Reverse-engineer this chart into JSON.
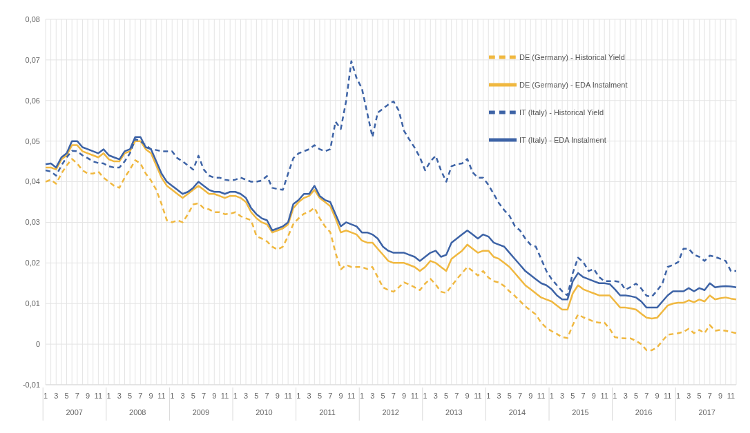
{
  "chart_data": {
    "type": "line",
    "categories": [
      "1",
      null,
      "3",
      null,
      "5",
      null,
      "7",
      null,
      "9",
      null,
      "11",
      null,
      "1",
      null,
      "3",
      null,
      "5",
      null,
      "7",
      null,
      "9",
      null,
      "11",
      null,
      "1",
      null,
      "3",
      null,
      "5",
      null,
      "7",
      null,
      "9",
      null,
      "11",
      null,
      "1",
      null,
      "3",
      null,
      "5",
      null,
      "7",
      null,
      "9",
      null,
      "11",
      null,
      "1",
      null,
      "3",
      null,
      "5",
      null,
      "7",
      null,
      "9",
      null,
      "11",
      null,
      "1",
      null,
      "3",
      null,
      "5",
      null,
      "7",
      null,
      "9",
      null,
      "11",
      null,
      "1",
      null,
      "3",
      null,
      "5",
      null,
      "7",
      null,
      "9",
      null,
      "11",
      null,
      "1",
      null,
      "3",
      null,
      "5",
      null,
      "7",
      null,
      "9",
      null,
      "11",
      null,
      "1",
      null,
      "3",
      null,
      "5",
      null,
      "7",
      null,
      "9",
      null,
      "11",
      null,
      "1",
      null,
      "3",
      null,
      "5",
      null,
      "7",
      null,
      "9",
      null,
      "11",
      null,
      "1",
      null,
      "3",
      null,
      "5",
      null,
      "7",
      null,
      "9",
      null,
      "11",
      null
    ],
    "annotations": [
      "2007",
      "2008",
      "2009",
      "2010",
      "2011",
      "2012",
      "2013",
      "2014",
      "2015",
      "2016",
      "2017"
    ],
    "series": [
      {
        "name": "DE (Germany) - Historical Yield",
        "color": "#f0b840",
        "line_style": "dashed",
        "values": [
          0.04,
          0.0405,
          0.0395,
          0.042,
          0.044,
          0.0456,
          0.0445,
          0.0428,
          0.042,
          0.042,
          0.0425,
          0.041,
          0.04,
          0.039,
          0.0385,
          0.041,
          0.043,
          0.0453,
          0.0445,
          0.042,
          0.0403,
          0.038,
          0.0345,
          0.0305,
          0.03,
          0.0305,
          0.03,
          0.032,
          0.0344,
          0.0347,
          0.0335,
          0.0332,
          0.0325,
          0.0325,
          0.032,
          0.0321,
          0.0325,
          0.0315,
          0.031,
          0.0305,
          0.0266,
          0.026,
          0.0253,
          0.024,
          0.0233,
          0.024,
          0.0266,
          0.0296,
          0.031,
          0.0321,
          0.0326,
          0.0336,
          0.031,
          0.029,
          0.0276,
          0.0225,
          0.0184,
          0.0195,
          0.019,
          0.019,
          0.019,
          0.0185,
          0.019,
          0.0165,
          0.014,
          0.0133,
          0.0129,
          0.014,
          0.0152,
          0.0147,
          0.014,
          0.0133,
          0.0149,
          0.0161,
          0.0147,
          0.0129,
          0.0126,
          0.0143,
          0.016,
          0.0175,
          0.019,
          0.018,
          0.0169,
          0.018,
          0.0164,
          0.0155,
          0.0152,
          0.0143,
          0.013,
          0.0119,
          0.0106,
          0.0093,
          0.0083,
          0.0073,
          0.0053,
          0.004,
          0.0032,
          0.0025,
          0.0017,
          0.0015,
          0.0047,
          0.0073,
          0.0066,
          0.0061,
          0.0055,
          0.0053,
          0.0053,
          0.0038,
          0.0017,
          0.0015,
          0.0014,
          0.0014,
          0.0008,
          0.0,
          -0.0015,
          -0.0015,
          -0.0008,
          0.0008,
          0.0023,
          0.0025,
          0.0027,
          0.003,
          0.0038,
          0.0027,
          0.0035,
          0.0027,
          0.0047,
          0.0033,
          0.0035,
          0.0033,
          0.003,
          0.0027
        ]
      },
      {
        "name": "DE (Germany) - EDA Instalment",
        "color": "#f0b840",
        "line_style": "solid",
        "values": [
          0.0435,
          0.0435,
          0.043,
          0.0455,
          0.0465,
          0.049,
          0.049,
          0.0475,
          0.047,
          0.0465,
          0.046,
          0.047,
          0.0455,
          0.045,
          0.045,
          0.047,
          0.0475,
          0.05,
          0.05,
          0.048,
          0.047,
          0.044,
          0.041,
          0.039,
          0.038,
          0.037,
          0.036,
          0.037,
          0.038,
          0.039,
          0.038,
          0.037,
          0.037,
          0.0365,
          0.036,
          0.0365,
          0.0365,
          0.036,
          0.035,
          0.0325,
          0.031,
          0.03,
          0.0295,
          0.0275,
          0.028,
          0.0285,
          0.0295,
          0.0335,
          0.035,
          0.036,
          0.0365,
          0.038,
          0.036,
          0.035,
          0.034,
          0.031,
          0.0275,
          0.028,
          0.0275,
          0.027,
          0.0255,
          0.025,
          0.025,
          0.0235,
          0.022,
          0.0205,
          0.02,
          0.02,
          0.02,
          0.0195,
          0.019,
          0.018,
          0.019,
          0.0205,
          0.02,
          0.019,
          0.018,
          0.021,
          0.022,
          0.023,
          0.0245,
          0.0235,
          0.0225,
          0.023,
          0.023,
          0.0215,
          0.021,
          0.02,
          0.019,
          0.0175,
          0.016,
          0.0145,
          0.0135,
          0.0125,
          0.0115,
          0.011,
          0.0105,
          0.0095,
          0.0085,
          0.0085,
          0.0125,
          0.0145,
          0.0135,
          0.013,
          0.0125,
          0.012,
          0.012,
          0.012,
          0.0105,
          0.009,
          0.009,
          0.0088,
          0.0085,
          0.0075,
          0.0065,
          0.0063,
          0.0065,
          0.008,
          0.0095,
          0.01,
          0.0102,
          0.0102,
          0.0108,
          0.0103,
          0.011,
          0.0105,
          0.012,
          0.011,
          0.0113,
          0.0115,
          0.0112,
          0.011
        ]
      },
      {
        "name": "IT (Italy) - Historical Yield",
        "color": "#3d63a6",
        "line_style": "dashed",
        "values": [
          0.0428,
          0.0425,
          0.0415,
          0.044,
          0.046,
          0.0476,
          0.0475,
          0.0465,
          0.0458,
          0.045,
          0.0446,
          0.0445,
          0.0438,
          0.0435,
          0.0435,
          0.045,
          0.047,
          0.0505,
          0.05,
          0.049,
          0.048,
          0.0478,
          0.0475,
          0.0475,
          0.0475,
          0.0458,
          0.045,
          0.044,
          0.043,
          0.0464,
          0.043,
          0.0415,
          0.041,
          0.041,
          0.0405,
          0.0403,
          0.0405,
          0.041,
          0.0405,
          0.04,
          0.04,
          0.0403,
          0.0414,
          0.0385,
          0.0382,
          0.038,
          0.042,
          0.0458,
          0.047,
          0.0475,
          0.048,
          0.049,
          0.048,
          0.0475,
          0.048,
          0.0548,
          0.053,
          0.0598,
          0.0697,
          0.0655,
          0.063,
          0.057,
          0.051,
          0.057,
          0.058,
          0.059,
          0.0598,
          0.0575,
          0.0525,
          0.0504,
          0.0484,
          0.046,
          0.0428,
          0.045,
          0.0464,
          0.0428,
          0.04,
          0.0438,
          0.0443,
          0.0445,
          0.0456,
          0.0423,
          0.041,
          0.041,
          0.0392,
          0.037,
          0.0347,
          0.033,
          0.0316,
          0.0291,
          0.028,
          0.026,
          0.0245,
          0.024,
          0.021,
          0.018,
          0.016,
          0.0145,
          0.013,
          0.012,
          0.0175,
          0.0213,
          0.0202,
          0.018,
          0.0185,
          0.0165,
          0.0155,
          0.0155,
          0.0155,
          0.0153,
          0.0134,
          0.0141,
          0.0149,
          0.0137,
          0.0119,
          0.0117,
          0.0132,
          0.0149,
          0.019,
          0.0195,
          0.0202,
          0.0235,
          0.0235,
          0.022,
          0.0215,
          0.0205,
          0.0218,
          0.0215,
          0.021,
          0.0205,
          0.018,
          0.018
        ]
      },
      {
        "name": "IT (Italy) - EDA Instalment",
        "color": "#3d63a6",
        "line_style": "solid",
        "values": [
          0.0443,
          0.0445,
          0.0435,
          0.046,
          0.047,
          0.05,
          0.05,
          0.0485,
          0.048,
          0.0475,
          0.047,
          0.048,
          0.0465,
          0.046,
          0.0455,
          0.0475,
          0.048,
          0.051,
          0.051,
          0.0485,
          0.048,
          0.045,
          0.042,
          0.04,
          0.039,
          0.038,
          0.037,
          0.0375,
          0.0385,
          0.04,
          0.039,
          0.038,
          0.0375,
          0.0375,
          0.037,
          0.0375,
          0.0375,
          0.037,
          0.036,
          0.0335,
          0.032,
          0.031,
          0.0305,
          0.028,
          0.0285,
          0.029,
          0.03,
          0.0345,
          0.0355,
          0.037,
          0.037,
          0.039,
          0.0365,
          0.0355,
          0.035,
          0.032,
          0.029,
          0.03,
          0.0295,
          0.029,
          0.0275,
          0.0275,
          0.027,
          0.026,
          0.024,
          0.023,
          0.0225,
          0.0225,
          0.0225,
          0.022,
          0.0215,
          0.0205,
          0.0215,
          0.0225,
          0.023,
          0.0215,
          0.022,
          0.025,
          0.026,
          0.027,
          0.028,
          0.027,
          0.026,
          0.027,
          0.0265,
          0.025,
          0.0245,
          0.024,
          0.0225,
          0.021,
          0.0195,
          0.018,
          0.017,
          0.016,
          0.015,
          0.0145,
          0.0135,
          0.012,
          0.011,
          0.011,
          0.0155,
          0.0175,
          0.0165,
          0.016,
          0.0155,
          0.015,
          0.015,
          0.0148,
          0.0135,
          0.012,
          0.012,
          0.0118,
          0.0115,
          0.0105,
          0.009,
          0.009,
          0.009,
          0.0105,
          0.012,
          0.013,
          0.013,
          0.013,
          0.0138,
          0.013,
          0.0138,
          0.0133,
          0.015,
          0.014,
          0.0142,
          0.0143,
          0.0142,
          0.014
        ]
      }
    ],
    "ylim": [
      -0.01,
      0.08
    ],
    "yticks": [
      {
        "value": -0.01,
        "label": "-0,01"
      },
      0,
      {
        "value": 0.01,
        "label": "0,01"
      },
      {
        "value": 0.02,
        "label": "0,02"
      },
      {
        "value": 0.03,
        "label": "0,03"
      },
      {
        "value": 0.04,
        "label": "0,04"
      },
      {
        "value": 0.05,
        "label": "0,05"
      },
      {
        "value": 0.06,
        "label": "0,06"
      },
      {
        "value": 0.07,
        "label": "0,07"
      },
      {
        "value": 0.08,
        "label": "0,08"
      }
    ],
    "grid": true,
    "legend": "top right"
  }
}
